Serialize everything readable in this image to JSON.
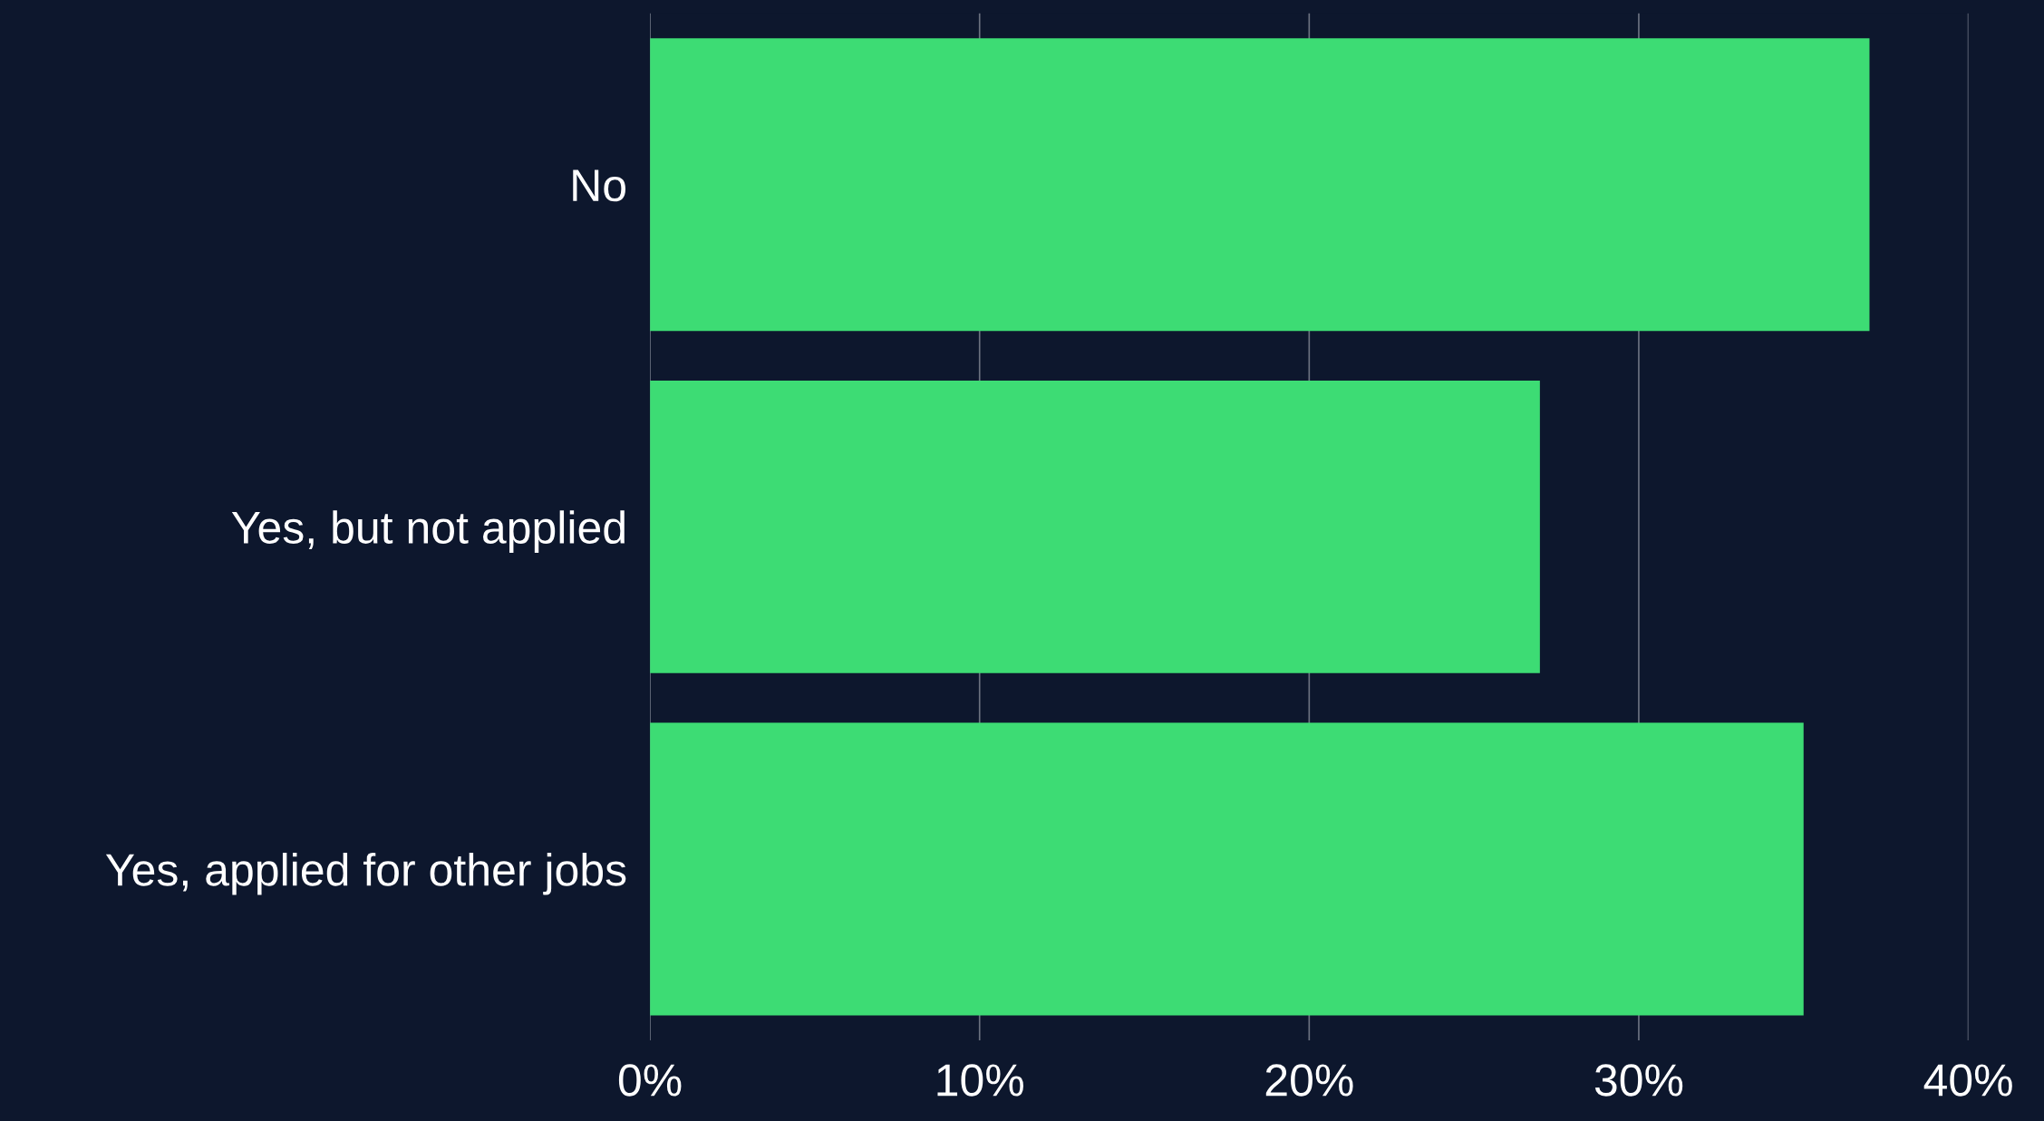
{
  "chart_data": {
    "type": "bar",
    "orientation": "horizontal",
    "categories": [
      "No",
      "Yes, but not applied",
      "Yes, applied for other jobs"
    ],
    "values": [
      37,
      27,
      35
    ],
    "color": "#3ddc74",
    "xlim": [
      0,
      40
    ],
    "xticks": [
      {
        "value": 0,
        "label": "0%"
      },
      {
        "value": 10,
        "label": "10%"
      },
      {
        "value": 20,
        "label": "20%"
      },
      {
        "value": 30,
        "label": "30%"
      },
      {
        "value": 40,
        "label": "40%"
      }
    ],
    "grid": "x",
    "legend": false
  }
}
